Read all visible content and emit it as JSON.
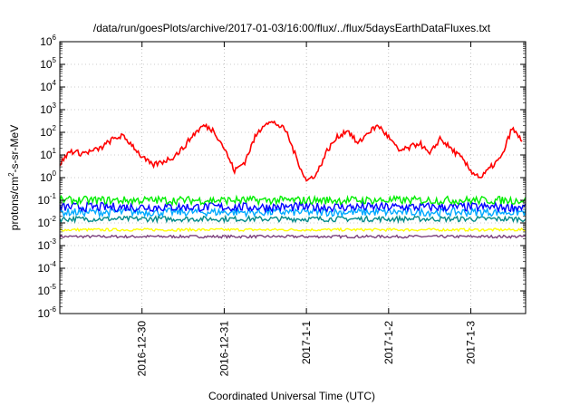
{
  "chart_data": {
    "type": "line",
    "title": "/data/run/goesPlots/archive/2017-01-03/16:00/flux/../flux/5daysEarthDataFluxes.txt",
    "xlabel": "Coordinated Universal Time (UTC)",
    "ylabel": {
      "base": "protons/cm",
      "sup": "2",
      "rest": "-s-sr-MeV"
    },
    "yscale": "log",
    "ylim": [
      1e-06,
      1000000.0
    ],
    "y_ticks": [
      {
        "value": 1e-06,
        "base": "10",
        "exp": "-6"
      },
      {
        "value": 1e-05,
        "base": "10",
        "exp": "-5"
      },
      {
        "value": 0.0001,
        "base": "10",
        "exp": "-4"
      },
      {
        "value": 0.001,
        "base": "10",
        "exp": "-3"
      },
      {
        "value": 0.01,
        "base": "10",
        "exp": "-2"
      },
      {
        "value": 0.1,
        "base": "10",
        "exp": "-1"
      },
      {
        "value": 1,
        "base": "10",
        "exp": "0"
      },
      {
        "value": 10,
        "base": "10",
        "exp": "1"
      },
      {
        "value": 100,
        "base": "10",
        "exp": "2"
      },
      {
        "value": 1000,
        "base": "10",
        "exp": "3"
      },
      {
        "value": 10000,
        "base": "10",
        "exp": "4"
      },
      {
        "value": 100000,
        "base": "10",
        "exp": "5"
      },
      {
        "value": 1000000,
        "base": "10",
        "exp": "6"
      }
    ],
    "xlim": [
      "2016-12-29 00:00",
      "2017-01-03 16:00"
    ],
    "x_ticks": [
      {
        "at": "2016-12-30 00:00",
        "label": "2016-12-30"
      },
      {
        "at": "2016-12-31 00:00",
        "label": "2016-12-31"
      },
      {
        "at": "2017-01-01 00:00",
        "label": "2017-1-1"
      },
      {
        "at": "2017-01-02 00:00",
        "label": "2017-1-2"
      },
      {
        "at": "2017-01-03 00:00",
        "label": "2017-1-3"
      }
    ],
    "grid": "dotted",
    "legend": "none",
    "series": [
      {
        "color": "#ff0000",
        "x": [
          "2016-12-29 00:00",
          "2016-12-29 03:00",
          "2016-12-29 06:00",
          "2016-12-29 09:00",
          "2016-12-29 12:00",
          "2016-12-29 15:00",
          "2016-12-29 18:00",
          "2016-12-29 21:00",
          "2016-12-30 00:00",
          "2016-12-30 03:00",
          "2016-12-30 06:00",
          "2016-12-30 09:00",
          "2016-12-30 12:00",
          "2016-12-30 15:00",
          "2016-12-30 18:00",
          "2016-12-30 21:00",
          "2016-12-31 00:00",
          "2016-12-31 03:00",
          "2016-12-31 06:00",
          "2016-12-31 09:00",
          "2016-12-31 12:00",
          "2016-12-31 15:00",
          "2016-12-31 18:00",
          "2016-12-31 21:00",
          "2017-01-01 00:00",
          "2017-01-01 03:00",
          "2017-01-01 06:00",
          "2017-01-01 09:00",
          "2017-01-01 12:00",
          "2017-01-01 15:00",
          "2017-01-01 18:00",
          "2017-01-01 21:00",
          "2017-01-02 00:00",
          "2017-01-02 03:00",
          "2017-01-02 06:00",
          "2017-01-02 09:00",
          "2017-01-02 12:00",
          "2017-01-02 15:00",
          "2017-01-02 18:00",
          "2017-01-02 21:00",
          "2017-01-03 00:00",
          "2017-01-03 03:00",
          "2017-01-03 06:00",
          "2017-01-03 09:00",
          "2017-01-03 12:00",
          "2017-01-03 15:00"
        ],
        "y": [
          4,
          15,
          12,
          14,
          20,
          45,
          70,
          30,
          8,
          3.5,
          5,
          8,
          20,
          80,
          200,
          120,
          20,
          2,
          5,
          60,
          280,
          250,
          120,
          8,
          0.7,
          1.5,
          15,
          60,
          130,
          30,
          100,
          200,
          60,
          15,
          20,
          35,
          10,
          55,
          20,
          8,
          2,
          1,
          3,
          8,
          150,
          40
        ]
      },
      {
        "color": "#00ee00",
        "y_typical": 0.1
      },
      {
        "color": "#0000ff",
        "y_typical": 0.05
      },
      {
        "color": "#00aaff",
        "y_typical": 0.03
      },
      {
        "color": "#008b8b",
        "y_typical": 0.015
      },
      {
        "color": "#ffff00",
        "y_typical": 0.005
      },
      {
        "color": "#7b3f7b",
        "y_typical": 0.0025
      }
    ]
  }
}
